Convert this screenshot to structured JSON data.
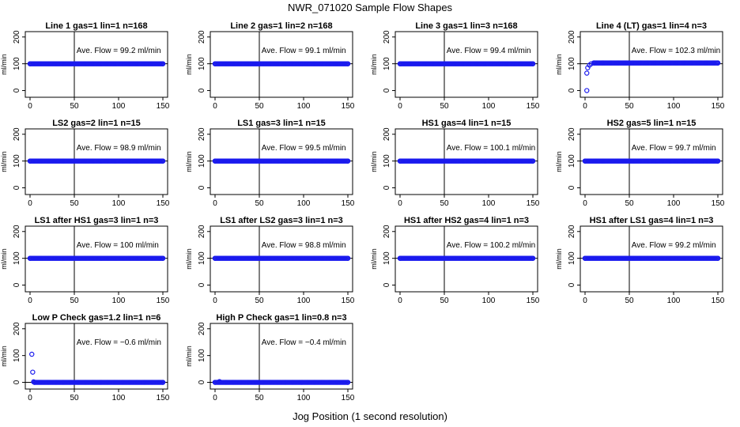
{
  "figure": {
    "title": "NWR_071020  Sample Flow Shapes",
    "xlabel": "Jog Position (1 second resolution)"
  },
  "chart_data": [
    {
      "type": "scatter",
      "title": "Line 1 gas=1 lin=1 n=168",
      "ylabel": "ml/min",
      "xlim": [
        0,
        150
      ],
      "ylim": [
        -25,
        220
      ],
      "xticks": [
        0,
        50,
        100,
        150
      ],
      "yticks": [
        0,
        100,
        200
      ],
      "annotation_prefix": "Ave. Flow =",
      "annotation_value": "99.2",
      "annotation_unit": "ml/min",
      "mean": 99.2,
      "vline_x": 50,
      "hline_y": 100,
      "points": [
        [
          0,
          100
        ],
        [
          150,
          100
        ]
      ],
      "fill": "dense"
    },
    {
      "type": "scatter",
      "title": "Line 2 gas=1 lin=2 n=168",
      "ylabel": "ml/min",
      "xlim": [
        0,
        150
      ],
      "ylim": [
        -25,
        220
      ],
      "xticks": [
        0,
        50,
        100,
        150
      ],
      "yticks": [
        0,
        100,
        200
      ],
      "annotation_prefix": "Ave. Flow =",
      "annotation_value": "99.1",
      "annotation_unit": "ml/min",
      "mean": 99.1,
      "vline_x": 50,
      "hline_y": 100,
      "points": [
        [
          0,
          100
        ],
        [
          150,
          100
        ]
      ],
      "fill": "dense"
    },
    {
      "type": "scatter",
      "title": "Line 3 gas=1 lin=3 n=168",
      "ylabel": "ml/min",
      "xlim": [
        0,
        150
      ],
      "ylim": [
        -25,
        220
      ],
      "xticks": [
        0,
        50,
        100,
        150
      ],
      "yticks": [
        0,
        100,
        200
      ],
      "annotation_prefix": "Ave. Flow =",
      "annotation_value": "99.4",
      "annotation_unit": "ml/min",
      "mean": 99.4,
      "vline_x": 50,
      "hline_y": 100,
      "points": [
        [
          0,
          100
        ],
        [
          150,
          100
        ]
      ],
      "fill": "dense"
    },
    {
      "type": "scatter",
      "title": "Line 4 (LT) gas=1 lin=4 n=3",
      "ylabel": "ml/min",
      "xlim": [
        0,
        150
      ],
      "ylim": [
        -25,
        220
      ],
      "xticks": [
        0,
        50,
        100,
        150
      ],
      "yticks": [
        0,
        100,
        200
      ],
      "annotation_prefix": "Ave. Flow =",
      "annotation_value": "102.3",
      "annotation_unit": "ml/min",
      "mean": 102.3,
      "vline_x": 50,
      "hline_y": 100,
      "points": [
        [
          2,
          0
        ],
        [
          2,
          65
        ],
        [
          3,
          85
        ],
        [
          5,
          95
        ],
        [
          7,
          100
        ],
        [
          10,
          103
        ],
        [
          150,
          103
        ]
      ],
      "fill": "dense-from-10"
    },
    {
      "type": "scatter",
      "title": "LS2 gas=2 lin=1 n=15",
      "ylabel": "ml/min",
      "xlim": [
        0,
        150
      ],
      "ylim": [
        -25,
        220
      ],
      "xticks": [
        0,
        50,
        100,
        150
      ],
      "yticks": [
        0,
        100,
        200
      ],
      "annotation_prefix": "Ave. Flow =",
      "annotation_value": "98.9",
      "annotation_unit": "ml/min",
      "mean": 98.9,
      "vline_x": 50,
      "hline_y": 100,
      "points": [
        [
          0,
          100
        ],
        [
          150,
          100
        ]
      ],
      "fill": "dense"
    },
    {
      "type": "scatter",
      "title": "LS1 gas=3 lin=1 n=15",
      "ylabel": "ml/min",
      "xlim": [
        0,
        150
      ],
      "ylim": [
        -25,
        220
      ],
      "xticks": [
        0,
        50,
        100,
        150
      ],
      "yticks": [
        0,
        100,
        200
      ],
      "annotation_prefix": "Ave. Flow =",
      "annotation_value": "99.5",
      "annotation_unit": "ml/min",
      "mean": 99.5,
      "vline_x": 50,
      "hline_y": 100,
      "points": [
        [
          0,
          100
        ],
        [
          150,
          100
        ]
      ],
      "fill": "dense"
    },
    {
      "type": "scatter",
      "title": "HS1 gas=4 lin=1 n=15",
      "ylabel": "ml/min",
      "xlim": [
        0,
        150
      ],
      "ylim": [
        -25,
        220
      ],
      "xticks": [
        0,
        50,
        100,
        150
      ],
      "yticks": [
        0,
        100,
        200
      ],
      "annotation_prefix": "Ave. Flow =",
      "annotation_value": "100.1",
      "annotation_unit": "ml/min",
      "mean": 100.1,
      "vline_x": 50,
      "hline_y": 100,
      "points": [
        [
          0,
          100
        ],
        [
          150,
          100
        ]
      ],
      "fill": "dense"
    },
    {
      "type": "scatter",
      "title": "HS2 gas=5 lin=1 n=15",
      "ylabel": "ml/min",
      "xlim": [
        0,
        150
      ],
      "ylim": [
        -25,
        220
      ],
      "xticks": [
        0,
        50,
        100,
        150
      ],
      "yticks": [
        0,
        100,
        200
      ],
      "annotation_prefix": "Ave. Flow =",
      "annotation_value": "99.7",
      "annotation_unit": "ml/min",
      "mean": 99.7,
      "vline_x": 50,
      "hline_y": 100,
      "points": [
        [
          0,
          100
        ],
        [
          150,
          100
        ]
      ],
      "fill": "dense"
    },
    {
      "type": "scatter",
      "title": "LS1 after HS1 gas=3 lin=1 n=3",
      "ylabel": "ml/min",
      "xlim": [
        0,
        150
      ],
      "ylim": [
        -25,
        220
      ],
      "xticks": [
        0,
        50,
        100,
        150
      ],
      "yticks": [
        0,
        100,
        200
      ],
      "annotation_prefix": "Ave. Flow =",
      "annotation_value": "100",
      "annotation_unit": "ml/min",
      "mean": 100,
      "vline_x": 50,
      "hline_y": 100,
      "points": [
        [
          0,
          100
        ],
        [
          150,
          100
        ]
      ],
      "fill": "dense"
    },
    {
      "type": "scatter",
      "title": "LS1 after LS2 gas=3 lin=1 n=3",
      "ylabel": "ml/min",
      "xlim": [
        0,
        150
      ],
      "ylim": [
        -25,
        220
      ],
      "xticks": [
        0,
        50,
        100,
        150
      ],
      "yticks": [
        0,
        100,
        200
      ],
      "annotation_prefix": "Ave. Flow =",
      "annotation_value": "98.8",
      "annotation_unit": "ml/min",
      "mean": 98.8,
      "vline_x": 50,
      "hline_y": 100,
      "points": [
        [
          0,
          100
        ],
        [
          150,
          100
        ]
      ],
      "fill": "dense"
    },
    {
      "type": "scatter",
      "title": "HS1 after HS2 gas=4 lin=1 n=3",
      "ylabel": "ml/min",
      "xlim": [
        0,
        150
      ],
      "ylim": [
        -25,
        220
      ],
      "xticks": [
        0,
        50,
        100,
        150
      ],
      "yticks": [
        0,
        100,
        200
      ],
      "annotation_prefix": "Ave. Flow =",
      "annotation_value": "100.2",
      "annotation_unit": "ml/min",
      "mean": 100.2,
      "vline_x": 50,
      "hline_y": 100,
      "points": [
        [
          0,
          100
        ],
        [
          150,
          100
        ]
      ],
      "fill": "dense"
    },
    {
      "type": "scatter",
      "title": "HS1 after LS1 gas=4 lin=1 n=3",
      "ylabel": "ml/min",
      "xlim": [
        0,
        150
      ],
      "ylim": [
        -25,
        220
      ],
      "xticks": [
        0,
        50,
        100,
        150
      ],
      "yticks": [
        0,
        100,
        200
      ],
      "annotation_prefix": "Ave. Flow =",
      "annotation_value": "99.2",
      "annotation_unit": "ml/min",
      "mean": 99.2,
      "vline_x": 50,
      "hline_y": 100,
      "points": [
        [
          0,
          100
        ],
        [
          150,
          100
        ]
      ],
      "fill": "dense"
    },
    {
      "type": "scatter",
      "title": "Low P Check gas=1.2 lin=1 n=6",
      "ylabel": "ml/min",
      "xlim": [
        0,
        150
      ],
      "ylim": [
        -25,
        220
      ],
      "xticks": [
        0,
        50,
        100,
        150
      ],
      "yticks": [
        0,
        100,
        200
      ],
      "annotation_prefix": "Ave. Flow =",
      "annotation_value": "−0.6",
      "annotation_unit": "ml/min",
      "mean": -0.6,
      "vline_x": 50,
      "hline_y": 0,
      "points": [
        [
          2,
          105
        ],
        [
          3,
          38
        ],
        [
          4,
          2
        ],
        [
          5,
          0
        ],
        [
          150,
          0
        ]
      ],
      "fill": "dense-from-5"
    },
    {
      "type": "scatter",
      "title": "High P Check gas=1 lin=0.8 n=3",
      "ylabel": "ml/min",
      "xlim": [
        0,
        150
      ],
      "ylim": [
        -25,
        220
      ],
      "xticks": [
        0,
        50,
        100,
        150
      ],
      "yticks": [
        0,
        100,
        200
      ],
      "annotation_prefix": "Ave. Flow =",
      "annotation_value": "−0.4",
      "annotation_unit": "ml/min",
      "mean": -0.4,
      "vline_x": 50,
      "hline_y": 0,
      "points": [
        [
          5,
          3
        ],
        [
          0,
          0
        ],
        [
          150,
          0
        ]
      ],
      "fill": "dense"
    }
  ],
  "colors": {
    "points": "#1a1aee",
    "axis": "#000000",
    "background": "#ffffff"
  }
}
